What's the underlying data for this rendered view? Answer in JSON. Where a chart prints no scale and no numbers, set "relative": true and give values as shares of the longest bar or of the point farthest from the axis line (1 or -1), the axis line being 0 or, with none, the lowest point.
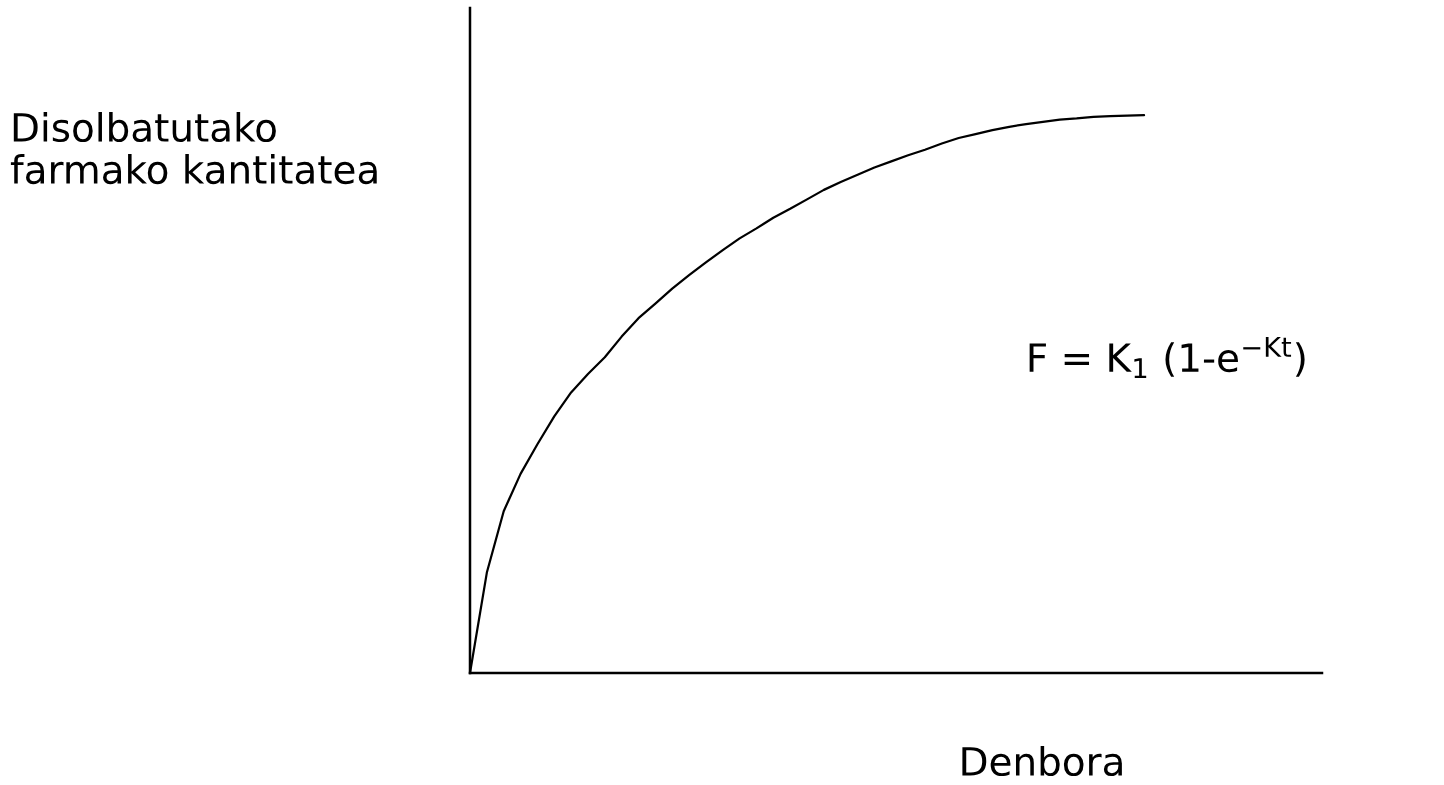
{
  "chart_data": {
    "type": "line",
    "relative": true,
    "categories": [
      null,
      null,
      null,
      null,
      null,
      null,
      null,
      null,
      null,
      null,
      null,
      null,
      null,
      null,
      null,
      null,
      null,
      null,
      null,
      null,
      null,
      null,
      null,
      null,
      null,
      null,
      null,
      null,
      null,
      null,
      null,
      null,
      null,
      null,
      null,
      null,
      null,
      null,
      null,
      null,
      null
    ],
    "values": [
      0,
      0.18,
      0.29,
      0.357,
      0.41,
      0.46,
      0.503,
      0.536,
      0.566,
      0.603,
      0.636,
      0.662,
      0.689,
      0.713,
      0.736,
      0.758,
      0.779,
      0.797,
      0.816,
      0.832,
      0.849,
      0.866,
      0.88,
      0.893,
      0.906,
      0.917,
      0.928,
      0.938,
      0.949,
      0.959,
      0.966,
      0.973,
      0.979,
      0.984,
      0.988,
      0.992,
      0.994,
      0.997,
      0.998,
      0.999,
      1.0
    ],
    "color": "#000000",
    "line_style": "solid",
    "ylabel": "Disolbatutako\nfarmako kantitatea",
    "xlabel": "Denbora",
    "annotations": [
      "F = K$_{1}$ (1-e$^{−Kt}$)"
    ]
  }
}
